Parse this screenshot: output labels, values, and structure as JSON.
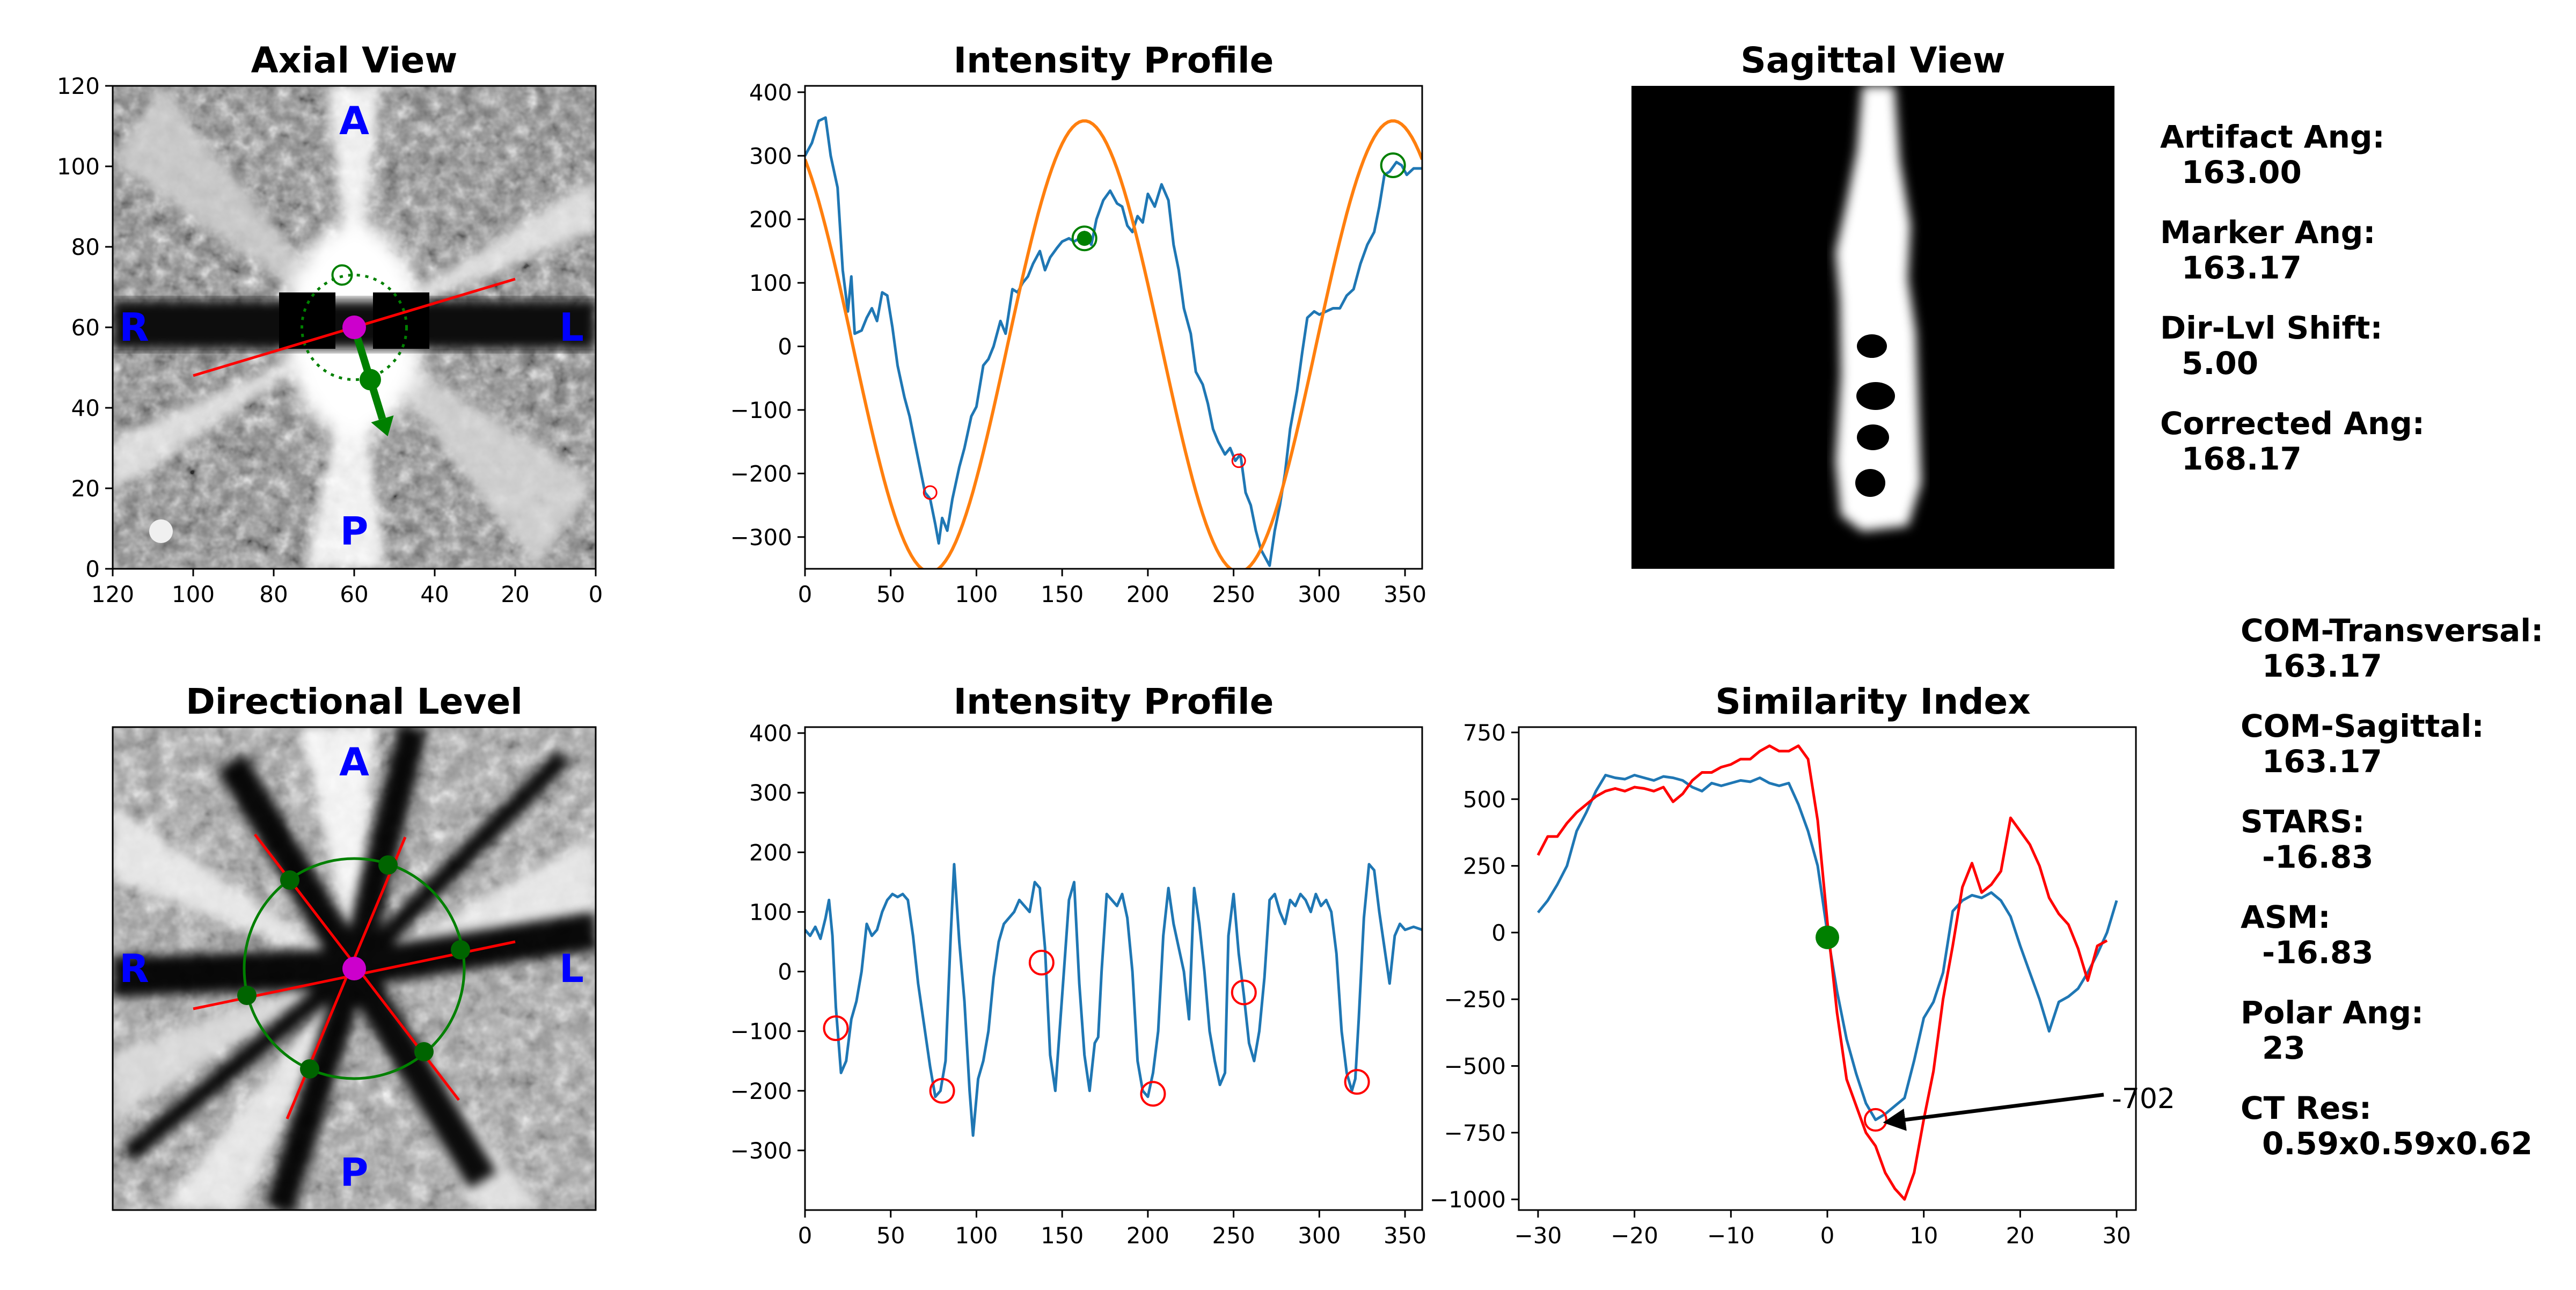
{
  "axial": {
    "title": "Axial View",
    "xlim": [
      120,
      0
    ],
    "ylim": [
      0,
      120
    ],
    "xticks": [
      120,
      100,
      80,
      60,
      40,
      20,
      0
    ],
    "yticks": [
      0,
      20,
      40,
      60,
      80,
      100,
      120
    ],
    "orientation": {
      "a": "A",
      "p": "P",
      "r": "R",
      "l": "L"
    },
    "center": [
      60,
      60
    ],
    "marker_circle_radius": 13,
    "artifact_line": [
      [
        100,
        48
      ],
      [
        20,
        72
      ]
    ],
    "marker_point": [
      56,
      47
    ],
    "top_marker": [
      63,
      73
    ],
    "colors": {
      "artifact_line": "#ff0000",
      "marker": "#008000",
      "center": "#cc00cc"
    }
  },
  "profile1": {
    "title": "Intensity Profile",
    "xlim": [
      0,
      360
    ],
    "ylim": [
      -350,
      410
    ],
    "xticks": [
      0,
      50,
      100,
      150,
      200,
      250,
      300,
      350
    ],
    "yticks": [
      400,
      300,
      200,
      100,
      0,
      -100,
      -200,
      -300
    ],
    "signal": [
      [
        0,
        300
      ],
      [
        4,
        320
      ],
      [
        8,
        355
      ],
      [
        12,
        360
      ],
      [
        15,
        300
      ],
      [
        19,
        250
      ],
      [
        22,
        120
      ],
      [
        25,
        55
      ],
      [
        27,
        110
      ],
      [
        29,
        20
      ],
      [
        33,
        25
      ],
      [
        36,
        45
      ],
      [
        39,
        60
      ],
      [
        42,
        40
      ],
      [
        45,
        85
      ],
      [
        48,
        80
      ],
      [
        51,
        30
      ],
      [
        54,
        -30
      ],
      [
        58,
        -80
      ],
      [
        61,
        -110
      ],
      [
        64,
        -150
      ],
      [
        67,
        -190
      ],
      [
        70,
        -230
      ],
      [
        73,
        -240
      ],
      [
        76,
        -280
      ],
      [
        78,
        -310
      ],
      [
        80,
        -270
      ],
      [
        83,
        -290
      ],
      [
        86,
        -240
      ],
      [
        90,
        -190
      ],
      [
        93,
        -160
      ],
      [
        97,
        -110
      ],
      [
        100,
        -95
      ],
      [
        104,
        -30
      ],
      [
        107,
        -20
      ],
      [
        110,
        0
      ],
      [
        114,
        40
      ],
      [
        117,
        20
      ],
      [
        121,
        90
      ],
      [
        124,
        85
      ],
      [
        127,
        100
      ],
      [
        130,
        110
      ],
      [
        133,
        130
      ],
      [
        137,
        150
      ],
      [
        140,
        120
      ],
      [
        143,
        140
      ],
      [
        147,
        155
      ],
      [
        150,
        165
      ],
      [
        154,
        170
      ],
      [
        157,
        165
      ],
      [
        160,
        170
      ],
      [
        163,
        180
      ],
      [
        167,
        160
      ],
      [
        170,
        200
      ],
      [
        174,
        230
      ],
      [
        178,
        245
      ],
      [
        182,
        225
      ],
      [
        185,
        220
      ],
      [
        188,
        190
      ],
      [
        191,
        180
      ],
      [
        194,
        205
      ],
      [
        197,
        195
      ],
      [
        200,
        240
      ],
      [
        204,
        220
      ],
      [
        208,
        255
      ],
      [
        212,
        230
      ],
      [
        215,
        160
      ],
      [
        218,
        120
      ],
      [
        221,
        60
      ],
      [
        225,
        20
      ],
      [
        228,
        -40
      ],
      [
        232,
        -60
      ],
      [
        235,
        -90
      ],
      [
        238,
        -130
      ],
      [
        241,
        -150
      ],
      [
        245,
        -170
      ],
      [
        248,
        -160
      ],
      [
        251,
        -180
      ],
      [
        254,
        -170
      ],
      [
        257,
        -230
      ],
      [
        260,
        -250
      ],
      [
        263,
        -290
      ],
      [
        266,
        -320
      ],
      [
        268,
        -330
      ],
      [
        271,
        -345
      ],
      [
        274,
        -290
      ],
      [
        277,
        -250
      ],
      [
        280,
        -200
      ],
      [
        283,
        -130
      ],
      [
        287,
        -70
      ],
      [
        290,
        -10
      ],
      [
        293,
        45
      ],
      [
        297,
        55
      ],
      [
        300,
        50
      ],
      [
        304,
        55
      ],
      [
        308,
        60
      ],
      [
        312,
        60
      ],
      [
        316,
        80
      ],
      [
        320,
        90
      ],
      [
        324,
        130
      ],
      [
        328,
        160
      ],
      [
        332,
        180
      ],
      [
        335,
        220
      ],
      [
        338,
        270
      ],
      [
        341,
        275
      ],
      [
        345,
        290
      ],
      [
        348,
        285
      ],
      [
        351,
        270
      ],
      [
        355,
        280
      ],
      [
        360,
        280
      ]
    ],
    "model_amplitude": 355,
    "model_peak": 163,
    "markers_green": [
      [
        163,
        170
      ],
      [
        343,
        285
      ]
    ],
    "markers_red": [
      [
        73,
        -230
      ],
      [
        253,
        -180
      ]
    ],
    "colors": {
      "signal": "#1f77b4",
      "model": "#ff7f0e",
      "peak": "#008000",
      "trough": "#ff0000"
    }
  },
  "sagittal": {
    "title": "Sagittal View"
  },
  "info_top": [
    {
      "label": "Artifact Ang:",
      "value": "163.00"
    },
    {
      "label": "Marker Ang:",
      "value": "163.17"
    },
    {
      "label": "Dir-Lvl Shift:",
      "value": "5.00"
    },
    {
      "label": "Corrected Ang:",
      "value": "168.17"
    }
  ],
  "directional": {
    "title": "Directional Level",
    "orientation": {
      "a": "A",
      "p": "P",
      "r": "R",
      "l": "L"
    },
    "colors": {
      "line": "#ff0000",
      "circle": "#008000",
      "center": "#cc00cc"
    }
  },
  "profile2": {
    "title": "Intensity Profile",
    "xlim": [
      0,
      360
    ],
    "ylim": [
      -400,
      410
    ],
    "xticks": [
      0,
      50,
      100,
      150,
      200,
      250,
      300,
      350
    ],
    "yticks": [
      400,
      300,
      200,
      100,
      0,
      -100,
      -200,
      -300
    ],
    "signal": [
      [
        0,
        70
      ],
      [
        3,
        60
      ],
      [
        6,
        75
      ],
      [
        9,
        55
      ],
      [
        12,
        90
      ],
      [
        14,
        120
      ],
      [
        16,
        60
      ],
      [
        18,
        -60
      ],
      [
        21,
        -170
      ],
      [
        24,
        -150
      ],
      [
        27,
        -80
      ],
      [
        30,
        -50
      ],
      [
        33,
        0
      ],
      [
        36,
        80
      ],
      [
        39,
        60
      ],
      [
        42,
        70
      ],
      [
        45,
        100
      ],
      [
        48,
        120
      ],
      [
        51,
        130
      ],
      [
        54,
        125
      ],
      [
        57,
        130
      ],
      [
        60,
        120
      ],
      [
        63,
        60
      ],
      [
        66,
        -20
      ],
      [
        70,
        -100
      ],
      [
        73,
        -160
      ],
      [
        76,
        -210
      ],
      [
        79,
        -200
      ],
      [
        82,
        -150
      ],
      [
        85,
        60
      ],
      [
        87,
        180
      ],
      [
        90,
        50
      ],
      [
        93,
        -50
      ],
      [
        96,
        -200
      ],
      [
        98,
        -275
      ],
      [
        101,
        -180
      ],
      [
        104,
        -150
      ],
      [
        107,
        -100
      ],
      [
        110,
        -10
      ],
      [
        113,
        50
      ],
      [
        116,
        80
      ],
      [
        119,
        90
      ],
      [
        122,
        100
      ],
      [
        125,
        120
      ],
      [
        128,
        110
      ],
      [
        131,
        100
      ],
      [
        134,
        150
      ],
      [
        137,
        140
      ],
      [
        140,
        40
      ],
      [
        143,
        -140
      ],
      [
        146,
        -200
      ],
      [
        148,
        -120
      ],
      [
        151,
        0
      ],
      [
        154,
        120
      ],
      [
        157,
        150
      ],
      [
        160,
        -20
      ],
      [
        163,
        -140
      ],
      [
        166,
        -200
      ],
      [
        169,
        -120
      ],
      [
        171,
        -110
      ],
      [
        173,
        0
      ],
      [
        176,
        130
      ],
      [
        179,
        120
      ],
      [
        182,
        110
      ],
      [
        185,
        130
      ],
      [
        188,
        90
      ],
      [
        191,
        0
      ],
      [
        194,
        -150
      ],
      [
        197,
        -200
      ],
      [
        200,
        -210
      ],
      [
        203,
        -170
      ],
      [
        206,
        -100
      ],
      [
        209,
        60
      ],
      [
        212,
        140
      ],
      [
        215,
        80
      ],
      [
        218,
        40
      ],
      [
        221,
        0
      ],
      [
        224,
        -80
      ],
      [
        227,
        140
      ],
      [
        230,
        80
      ],
      [
        233,
        0
      ],
      [
        236,
        -100
      ],
      [
        239,
        -150
      ],
      [
        242,
        -190
      ],
      [
        245,
        -170
      ],
      [
        247,
        60
      ],
      [
        250,
        130
      ],
      [
        253,
        30
      ],
      [
        256,
        -40
      ],
      [
        259,
        -120
      ],
      [
        262,
        -150
      ],
      [
        265,
        -100
      ],
      [
        268,
        -10
      ],
      [
        271,
        120
      ],
      [
        274,
        130
      ],
      [
        277,
        100
      ],
      [
        280,
        80
      ],
      [
        283,
        120
      ],
      [
        286,
        110
      ],
      [
        289,
        130
      ],
      [
        292,
        120
      ],
      [
        295,
        100
      ],
      [
        298,
        130
      ],
      [
        301,
        110
      ],
      [
        304,
        120
      ],
      [
        307,
        100
      ],
      [
        310,
        30
      ],
      [
        313,
        -100
      ],
      [
        316,
        -170
      ],
      [
        319,
        -200
      ],
      [
        321,
        -180
      ],
      [
        323,
        -80
      ],
      [
        326,
        90
      ],
      [
        329,
        180
      ],
      [
        332,
        170
      ],
      [
        335,
        100
      ],
      [
        338,
        40
      ],
      [
        341,
        -20
      ],
      [
        344,
        60
      ],
      [
        347,
        80
      ],
      [
        350,
        70
      ],
      [
        355,
        75
      ],
      [
        360,
        70
      ]
    ],
    "markers_red": [
      [
        18,
        -95
      ],
      [
        80,
        -200
      ],
      [
        138,
        15
      ],
      [
        203,
        -205
      ],
      [
        256,
        -35
      ],
      [
        322,
        -185
      ]
    ],
    "colors": {
      "signal": "#1f77b4",
      "marker": "#ff0000"
    }
  },
  "similarity": {
    "title": "Similarity Index",
    "xlim": [
      -32,
      32
    ],
    "ylim": [
      -1040,
      770
    ],
    "xticks": [
      -30,
      -20,
      -10,
      0,
      10,
      20,
      30
    ],
    "yticks": [
      750,
      500,
      250,
      0,
      -250,
      -500,
      -750,
      -1000
    ],
    "blue": [
      [
        -30,
        75
      ],
      [
        -29,
        120
      ],
      [
        -28,
        180
      ],
      [
        -27,
        250
      ],
      [
        -26,
        380
      ],
      [
        -25,
        450
      ],
      [
        -24,
        530
      ],
      [
        -23,
        590
      ],
      [
        -22,
        580
      ],
      [
        -21,
        575
      ],
      [
        -20,
        590
      ],
      [
        -19,
        580
      ],
      [
        -18,
        570
      ],
      [
        -17,
        585
      ],
      [
        -16,
        580
      ],
      [
        -15,
        570
      ],
      [
        -14,
        545
      ],
      [
        -13,
        530
      ],
      [
        -12,
        560
      ],
      [
        -11,
        550
      ],
      [
        -10,
        560
      ],
      [
        -9,
        570
      ],
      [
        -8,
        565
      ],
      [
        -7,
        580
      ],
      [
        -6,
        560
      ],
      [
        -5,
        550
      ],
      [
        -4,
        560
      ],
      [
        -3,
        480
      ],
      [
        -2,
        380
      ],
      [
        -1,
        250
      ],
      [
        0,
        0
      ],
      [
        1,
        -220
      ],
      [
        2,
        -400
      ],
      [
        3,
        -530
      ],
      [
        4,
        -640
      ],
      [
        5,
        -702
      ],
      [
        6,
        -680
      ],
      [
        7,
        -650
      ],
      [
        8,
        -620
      ],
      [
        9,
        -480
      ],
      [
        10,
        -320
      ],
      [
        11,
        -260
      ],
      [
        12,
        -150
      ],
      [
        13,
        80
      ],
      [
        14,
        120
      ],
      [
        15,
        140
      ],
      [
        16,
        130
      ],
      [
        17,
        150
      ],
      [
        18,
        120
      ],
      [
        19,
        60
      ],
      [
        20,
        -50
      ],
      [
        21,
        -150
      ],
      [
        22,
        -250
      ],
      [
        23,
        -370
      ],
      [
        24,
        -260
      ],
      [
        25,
        -240
      ],
      [
        26,
        -210
      ],
      [
        27,
        -150
      ],
      [
        28,
        -80
      ],
      [
        29,
        0
      ],
      [
        30,
        120
      ]
    ],
    "red": [
      [
        -30,
        290
      ],
      [
        -29,
        360
      ],
      [
        -28,
        360
      ],
      [
        -27,
        410
      ],
      [
        -26,
        450
      ],
      [
        -25,
        480
      ],
      [
        -24,
        510
      ],
      [
        -23,
        530
      ],
      [
        -22,
        540
      ],
      [
        -21,
        530
      ],
      [
        -20,
        545
      ],
      [
        -19,
        540
      ],
      [
        -18,
        530
      ],
      [
        -17,
        545
      ],
      [
        -16,
        490
      ],
      [
        -15,
        520
      ],
      [
        -14,
        570
      ],
      [
        -13,
        600
      ],
      [
        -12,
        600
      ],
      [
        -11,
        620
      ],
      [
        -10,
        630
      ],
      [
        -9,
        650
      ],
      [
        -8,
        650
      ],
      [
        -7,
        680
      ],
      [
        -6,
        700
      ],
      [
        -5,
        680
      ],
      [
        -4,
        680
      ],
      [
        -3,
        700
      ],
      [
        -2,
        650
      ],
      [
        -1,
        420
      ],
      [
        0,
        40
      ],
      [
        1,
        -300
      ],
      [
        2,
        -550
      ],
      [
        3,
        -650
      ],
      [
        4,
        -750
      ],
      [
        5,
        -800
      ],
      [
        6,
        -900
      ],
      [
        7,
        -960
      ],
      [
        8,
        -1000
      ],
      [
        9,
        -900
      ],
      [
        10,
        -700
      ],
      [
        11,
        -520
      ],
      [
        12,
        -250
      ],
      [
        13,
        -50
      ],
      [
        14,
        170
      ],
      [
        15,
        260
      ],
      [
        16,
        150
      ],
      [
        17,
        180
      ],
      [
        18,
        230
      ],
      [
        19,
        430
      ],
      [
        20,
        380
      ],
      [
        21,
        330
      ],
      [
        22,
        250
      ],
      [
        23,
        130
      ],
      [
        24,
        70
      ],
      [
        25,
        30
      ],
      [
        26,
        -60
      ],
      [
        27,
        -180
      ],
      [
        28,
        -50
      ],
      [
        29,
        -30
      ]
    ],
    "marker_zero": [
      0,
      -18
    ],
    "marker_min": [
      5,
      -702
    ],
    "annotation": "-702",
    "colors": {
      "blue": "#1f77b4",
      "red": "#ff0000",
      "zero_marker": "#008000",
      "min_marker": "#ff0000"
    }
  },
  "info_bottom": [
    {
      "label": "COM-Transversal:",
      "value": "163.17"
    },
    {
      "label": "COM-Sagittal:",
      "value": "163.17"
    },
    {
      "label": "STARS:",
      "value": "-16.83"
    },
    {
      "label": "ASM:",
      "value": "-16.83"
    },
    {
      "label": "Polar Ang:",
      "value": "23"
    },
    {
      "label": "CT Res:",
      "value": "0.59x0.59x0.62"
    }
  ]
}
